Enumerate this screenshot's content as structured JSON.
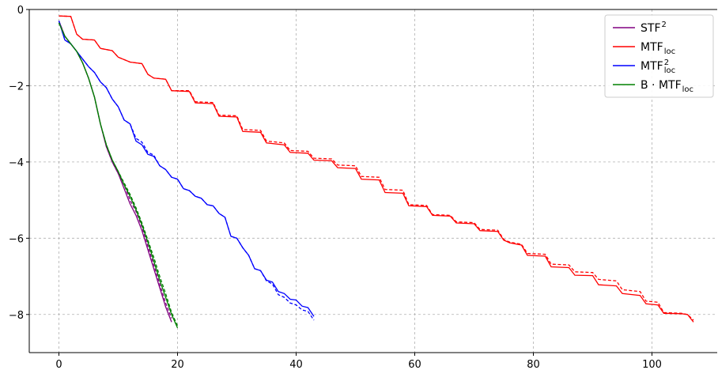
{
  "chart_data": {
    "type": "line",
    "title": "",
    "xlabel": "",
    "ylabel": "",
    "xlim": [
      -5,
      111
    ],
    "ylim": [
      -9,
      0
    ],
    "xticks": [
      0,
      20,
      40,
      60,
      80,
      100
    ],
    "yticks": [
      0,
      -2,
      -4,
      -6,
      -8
    ],
    "xtick_labels": [
      "0",
      "20",
      "40",
      "60",
      "80",
      "100"
    ],
    "ytick_labels": [
      "0",
      "−2",
      "−4",
      "−6",
      "−8"
    ],
    "grid": true,
    "legend_position": "top-right",
    "series": [
      {
        "name": "STF",
        "name_sup": "2",
        "name_sub": "",
        "name_prefix": "",
        "color": "#800080",
        "solid": [
          [
            0,
            -0.3
          ],
          [
            1,
            -0.7
          ],
          [
            2,
            -0.9
          ],
          [
            3,
            -1.1
          ],
          [
            4,
            -1.4
          ],
          [
            5,
            -1.8
          ],
          [
            6,
            -2.3
          ],
          [
            7,
            -3.0
          ],
          [
            8,
            -3.6
          ],
          [
            9,
            -4.0
          ],
          [
            10,
            -4.3
          ],
          [
            11,
            -4.7
          ],
          [
            12,
            -5.1
          ],
          [
            13,
            -5.4
          ],
          [
            14,
            -5.8
          ],
          [
            15,
            -6.3
          ],
          [
            16,
            -6.8
          ],
          [
            17,
            -7.3
          ],
          [
            18,
            -7.8
          ],
          [
            19,
            -8.2
          ]
        ],
        "dashed": [
          [
            0,
            -0.3
          ],
          [
            1,
            -0.7
          ],
          [
            2,
            -0.9
          ],
          [
            3,
            -1.1
          ],
          [
            4,
            -1.4
          ],
          [
            5,
            -1.8
          ],
          [
            6,
            -2.3
          ],
          [
            7,
            -3.0
          ],
          [
            8,
            -3.6
          ],
          [
            9,
            -4.0
          ],
          [
            10,
            -4.3
          ],
          [
            11,
            -4.6
          ],
          [
            12,
            -5.0
          ],
          [
            13,
            -5.3
          ],
          [
            14,
            -5.7
          ],
          [
            15,
            -6.2
          ],
          [
            16,
            -6.7
          ],
          [
            17,
            -7.2
          ],
          [
            18,
            -7.7
          ],
          [
            19,
            -8.1
          ]
        ]
      },
      {
        "name": "MTF",
        "name_sup": "",
        "name_sub": "loc",
        "name_prefix": "",
        "color": "#ff0000",
        "solid": [
          [
            0,
            -0.17
          ],
          [
            2,
            -0.18
          ],
          [
            3,
            -0.65
          ],
          [
            4,
            -0.78
          ],
          [
            6,
            -0.8
          ],
          [
            7,
            -1.02
          ],
          [
            9,
            -1.08
          ],
          [
            10,
            -1.25
          ],
          [
            12,
            -1.38
          ],
          [
            14,
            -1.42
          ],
          [
            15,
            -1.7
          ],
          [
            16,
            -1.8
          ],
          [
            18,
            -1.83
          ],
          [
            19,
            -2.13
          ],
          [
            22,
            -2.15
          ],
          [
            23,
            -2.45
          ],
          [
            26,
            -2.47
          ],
          [
            27,
            -2.8
          ],
          [
            30,
            -2.82
          ],
          [
            31,
            -3.2
          ],
          [
            34,
            -3.22
          ],
          [
            35,
            -3.5
          ],
          [
            38,
            -3.55
          ],
          [
            39,
            -3.75
          ],
          [
            42,
            -3.77
          ],
          [
            43,
            -3.95
          ],
          [
            46,
            -3.97
          ],
          [
            47,
            -4.15
          ],
          [
            50,
            -4.17
          ],
          [
            51,
            -4.45
          ],
          [
            54,
            -4.47
          ],
          [
            55,
            -4.8
          ],
          [
            58,
            -4.82
          ],
          [
            59,
            -5.15
          ],
          [
            62,
            -5.17
          ],
          [
            63,
            -5.4
          ],
          [
            66,
            -5.42
          ],
          [
            67,
            -5.6
          ],
          [
            70,
            -5.62
          ],
          [
            71,
            -5.8
          ],
          [
            74,
            -5.82
          ],
          [
            75,
            -6.05
          ],
          [
            76,
            -6.12
          ],
          [
            78,
            -6.18
          ],
          [
            79,
            -6.45
          ],
          [
            82,
            -6.47
          ],
          [
            83,
            -6.75
          ],
          [
            86,
            -6.77
          ],
          [
            87,
            -6.97
          ],
          [
            90,
            -6.98
          ],
          [
            91,
            -7.22
          ],
          [
            94,
            -7.25
          ],
          [
            95,
            -7.45
          ],
          [
            98,
            -7.5
          ],
          [
            99,
            -7.72
          ],
          [
            101,
            -7.75
          ],
          [
            102,
            -7.97
          ],
          [
            105,
            -7.98
          ],
          [
            106,
            -8.0
          ],
          [
            107,
            -8.2
          ]
        ],
        "dashed": [
          [
            0,
            -0.17
          ],
          [
            2,
            -0.18
          ],
          [
            3,
            -0.65
          ],
          [
            4,
            -0.78
          ],
          [
            6,
            -0.8
          ],
          [
            7,
            -1.02
          ],
          [
            9,
            -1.08
          ],
          [
            10,
            -1.25
          ],
          [
            12,
            -1.38
          ],
          [
            14,
            -1.42
          ],
          [
            15,
            -1.7
          ],
          [
            16,
            -1.8
          ],
          [
            18,
            -1.83
          ],
          [
            19,
            -2.13
          ],
          [
            22,
            -2.13
          ],
          [
            23,
            -2.42
          ],
          [
            26,
            -2.44
          ],
          [
            27,
            -2.77
          ],
          [
            30,
            -2.79
          ],
          [
            31,
            -3.15
          ],
          [
            34,
            -3.17
          ],
          [
            35,
            -3.45
          ],
          [
            38,
            -3.5
          ],
          [
            39,
            -3.7
          ],
          [
            42,
            -3.72
          ],
          [
            43,
            -3.9
          ],
          [
            46,
            -3.92
          ],
          [
            47,
            -4.08
          ],
          [
            50,
            -4.1
          ],
          [
            51,
            -4.38
          ],
          [
            54,
            -4.4
          ],
          [
            55,
            -4.72
          ],
          [
            58,
            -4.74
          ],
          [
            59,
            -5.12
          ],
          [
            62,
            -5.14
          ],
          [
            63,
            -5.38
          ],
          [
            66,
            -5.4
          ],
          [
            67,
            -5.57
          ],
          [
            70,
            -5.59
          ],
          [
            71,
            -5.77
          ],
          [
            74,
            -5.79
          ],
          [
            75,
            -6.03
          ],
          [
            76,
            -6.1
          ],
          [
            78,
            -6.16
          ],
          [
            79,
            -6.4
          ],
          [
            82,
            -6.42
          ],
          [
            83,
            -6.68
          ],
          [
            86,
            -6.7
          ],
          [
            87,
            -6.88
          ],
          [
            90,
            -6.9
          ],
          [
            91,
            -7.08
          ],
          [
            94,
            -7.12
          ],
          [
            95,
            -7.35
          ],
          [
            98,
            -7.4
          ],
          [
            99,
            -7.65
          ],
          [
            101,
            -7.68
          ],
          [
            102,
            -7.95
          ],
          [
            105,
            -7.97
          ],
          [
            106,
            -8.0
          ],
          [
            107,
            -8.15
          ]
        ]
      },
      {
        "name": "MTF",
        "name_sup": "2",
        "name_sub": "loc",
        "name_prefix": "",
        "color": "#0000ff",
        "solid": [
          [
            0,
            -0.3
          ],
          [
            1,
            -0.8
          ],
          [
            2,
            -0.9
          ],
          [
            3,
            -1.1
          ],
          [
            4,
            -1.3
          ],
          [
            5,
            -1.5
          ],
          [
            6,
            -1.65
          ],
          [
            7,
            -1.9
          ],
          [
            8,
            -2.05
          ],
          [
            9,
            -2.35
          ],
          [
            10,
            -2.55
          ],
          [
            11,
            -2.9
          ],
          [
            12,
            -3.0
          ],
          [
            13,
            -3.45
          ],
          [
            14,
            -3.55
          ],
          [
            15,
            -3.8
          ],
          [
            16,
            -3.85
          ],
          [
            17,
            -4.1
          ],
          [
            18,
            -4.2
          ],
          [
            19,
            -4.4
          ],
          [
            20,
            -4.45
          ],
          [
            21,
            -4.7
          ],
          [
            22,
            -4.75
          ],
          [
            23,
            -4.9
          ],
          [
            24,
            -4.95
          ],
          [
            25,
            -5.12
          ],
          [
            26,
            -5.15
          ],
          [
            27,
            -5.35
          ],
          [
            28,
            -5.45
          ],
          [
            29,
            -5.95
          ],
          [
            30,
            -6.0
          ],
          [
            31,
            -6.25
          ],
          [
            32,
            -6.45
          ],
          [
            33,
            -6.8
          ],
          [
            34,
            -6.85
          ],
          [
            35,
            -7.1
          ],
          [
            36,
            -7.15
          ],
          [
            37,
            -7.4
          ],
          [
            38,
            -7.45
          ],
          [
            39,
            -7.6
          ],
          [
            40,
            -7.62
          ],
          [
            41,
            -7.78
          ],
          [
            42,
            -7.82
          ],
          [
            43,
            -8.05
          ]
        ],
        "dashed": [
          [
            0,
            -0.3
          ],
          [
            1,
            -0.8
          ],
          [
            2,
            -0.9
          ],
          [
            3,
            -1.1
          ],
          [
            4,
            -1.3
          ],
          [
            5,
            -1.5
          ],
          [
            6,
            -1.65
          ],
          [
            7,
            -1.9
          ],
          [
            8,
            -2.05
          ],
          [
            9,
            -2.35
          ],
          [
            10,
            -2.55
          ],
          [
            11,
            -2.9
          ],
          [
            12,
            -3.0
          ],
          [
            13,
            -3.38
          ],
          [
            14,
            -3.48
          ],
          [
            15,
            -3.75
          ],
          [
            16,
            -3.82
          ],
          [
            17,
            -4.1
          ],
          [
            18,
            -4.2
          ],
          [
            19,
            -4.4
          ],
          [
            20,
            -4.45
          ],
          [
            21,
            -4.7
          ],
          [
            22,
            -4.75
          ],
          [
            23,
            -4.9
          ],
          [
            24,
            -4.95
          ],
          [
            25,
            -5.12
          ],
          [
            26,
            -5.15
          ],
          [
            27,
            -5.35
          ],
          [
            28,
            -5.45
          ],
          [
            29,
            -5.95
          ],
          [
            30,
            -6.0
          ],
          [
            31,
            -6.25
          ],
          [
            32,
            -6.45
          ],
          [
            33,
            -6.8
          ],
          [
            34,
            -6.85
          ],
          [
            35,
            -7.12
          ],
          [
            36,
            -7.2
          ],
          [
            37,
            -7.48
          ],
          [
            38,
            -7.55
          ],
          [
            39,
            -7.7
          ],
          [
            40,
            -7.75
          ],
          [
            41,
            -7.88
          ],
          [
            42,
            -7.92
          ],
          [
            43,
            -8.15
          ]
        ]
      },
      {
        "name": "MTF",
        "name_sup": "",
        "name_sub": "loc",
        "name_prefix": "B · ",
        "color": "#008000",
        "solid": [
          [
            0,
            -0.35
          ],
          [
            1,
            -0.7
          ],
          [
            2,
            -0.9
          ],
          [
            3,
            -1.1
          ],
          [
            4,
            -1.4
          ],
          [
            5,
            -1.8
          ],
          [
            6,
            -2.3
          ],
          [
            7,
            -3.0
          ],
          [
            8,
            -3.55
          ],
          [
            9,
            -3.95
          ],
          [
            10,
            -4.25
          ],
          [
            11,
            -4.6
          ],
          [
            12,
            -4.9
          ],
          [
            13,
            -5.25
          ],
          [
            14,
            -5.65
          ],
          [
            15,
            -6.1
          ],
          [
            16,
            -6.6
          ],
          [
            17,
            -7.1
          ],
          [
            18,
            -7.55
          ],
          [
            19,
            -8.0
          ],
          [
            20,
            -8.35
          ]
        ],
        "dashed": [
          [
            0,
            -0.35
          ],
          [
            1,
            -0.7
          ],
          [
            2,
            -0.9
          ],
          [
            3,
            -1.1
          ],
          [
            4,
            -1.4
          ],
          [
            5,
            -1.8
          ],
          [
            6,
            -2.3
          ],
          [
            7,
            -3.0
          ],
          [
            8,
            -3.55
          ],
          [
            9,
            -3.95
          ],
          [
            10,
            -4.25
          ],
          [
            11,
            -4.55
          ],
          [
            12,
            -4.85
          ],
          [
            13,
            -5.2
          ],
          [
            14,
            -5.6
          ],
          [
            15,
            -6.05
          ],
          [
            16,
            -6.5
          ],
          [
            17,
            -7.0
          ],
          [
            18,
            -7.45
          ],
          [
            19,
            -7.95
          ],
          [
            20,
            -8.3
          ]
        ]
      }
    ]
  }
}
